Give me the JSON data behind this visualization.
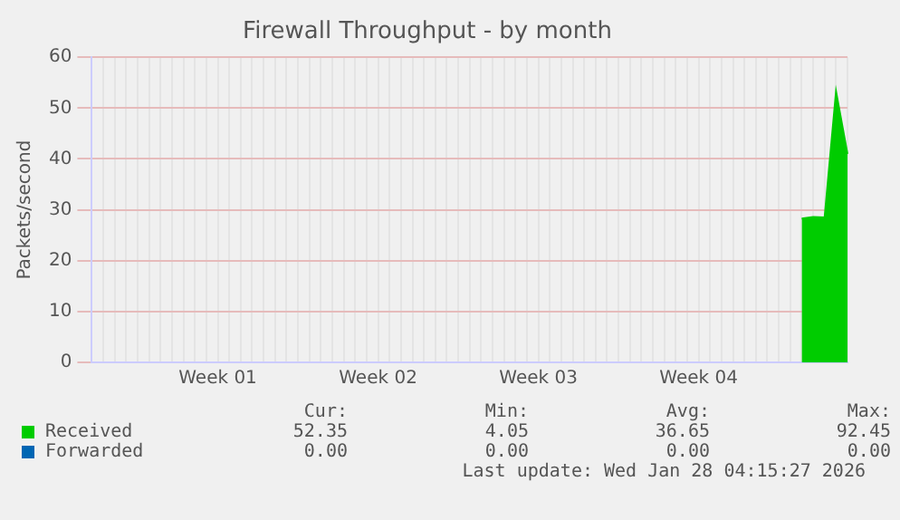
{
  "chart_data": {
    "type": "area",
    "title": "Firewall Throughput - by month",
    "ylabel": "Packets/second",
    "categories": [
      null,
      null,
      null,
      null,
      null,
      null,
      null,
      null,
      null,
      null,
      null,
      "Week 01",
      null,
      null,
      null,
      null,
      null,
      null,
      null,
      null,
      null,
      null,
      null,
      null,
      null,
      "Week 02",
      null,
      null,
      null,
      null,
      null,
      null,
      null,
      null,
      null,
      null,
      null,
      null,
      null,
      "Week 03",
      null,
      null,
      null,
      null,
      null,
      null,
      null,
      null,
      null,
      null,
      null,
      null,
      null,
      "Week 04",
      null,
      null,
      null,
      null,
      null,
      null,
      null,
      null,
      null,
      null,
      null,
      null,
      null
    ],
    "ylim": [
      0,
      60
    ],
    "yticks": [
      0,
      10,
      20,
      30,
      40,
      50,
      60
    ],
    "grid": true,
    "legend": "bottom",
    "series": [
      {
        "name": "Received",
        "color": "#00cc00",
        "values": [
          null,
          null,
          null,
          null,
          null,
          null,
          null,
          null,
          null,
          null,
          null,
          null,
          null,
          null,
          null,
          null,
          null,
          null,
          null,
          null,
          null,
          null,
          null,
          null,
          null,
          null,
          null,
          null,
          null,
          null,
          null,
          null,
          null,
          null,
          null,
          null,
          null,
          null,
          null,
          null,
          null,
          null,
          null,
          null,
          null,
          null,
          null,
          null,
          null,
          null,
          null,
          null,
          null,
          null,
          null,
          null,
          null,
          null,
          null,
          null,
          null,
          null,
          28.3,
          28.6,
          28.5,
          53.3,
          41
        ]
      },
      {
        "name": "Forwarded",
        "color": "#0066b3",
        "values": [
          null,
          null,
          null,
          null,
          null,
          null,
          null,
          null,
          null,
          null,
          null,
          null,
          null,
          null,
          null,
          null,
          null,
          null,
          null,
          null,
          null,
          null,
          null,
          null,
          null,
          null,
          null,
          null,
          null,
          null,
          null,
          null,
          null,
          null,
          null,
          null,
          null,
          null,
          null,
          null,
          null,
          null,
          null,
          null,
          null,
          null,
          null,
          null,
          null,
          null,
          null,
          null,
          null,
          null,
          null,
          null,
          null,
          null,
          null,
          null,
          null,
          null,
          null,
          null,
          null,
          null,
          null
        ]
      }
    ],
    "annotations": [
      "Cur:",
      "Min:",
      "Avg:",
      "Max:",
      "52.35",
      "4.05",
      "36.65",
      "92.45",
      "0.00",
      "0.00",
      "0.00",
      "0.00",
      "Last update: Wed Jan 28 04:15:27 2026"
    ]
  }
}
